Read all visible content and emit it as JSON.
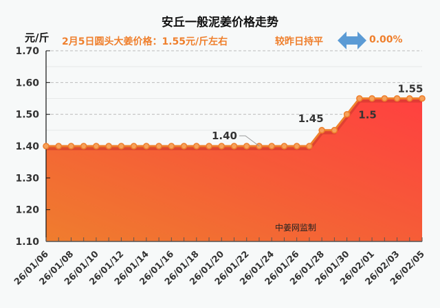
{
  "header": {
    "title": "安丘一般泥姜价格走势",
    "unit": "元/斤",
    "price_text": "2月5日圆头大姜价格：1.55元/斤左右",
    "change_text": "较昨日持平",
    "change_icon": "left-right-arrow-icon",
    "change_pct": "0.00%"
  },
  "watermark": "中姜网监制",
  "colors": {
    "headline": "#ef7f2c",
    "line": "#ef7f2c",
    "fill_top": "#ff4040",
    "fill_bottom": "#f07a30",
    "arrow": "#5b9bd5",
    "background": "#f7f9f9"
  },
  "chart_data": {
    "type": "area",
    "title": "安丘一般泥姜价格走势",
    "xlabel": "",
    "ylabel": "元/斤",
    "ylim": [
      1.1,
      1.7
    ],
    "yticks": [
      "1.10",
      "1.20",
      "1.30",
      "1.40",
      "1.50",
      "1.60",
      "1.70"
    ],
    "grid": true,
    "x": [
      "26/01/06",
      "26/01/07",
      "26/01/08",
      "26/01/09",
      "26/01/10",
      "26/01/11",
      "26/01/12",
      "26/01/13",
      "26/01/14",
      "26/01/15",
      "26/01/16",
      "26/01/17",
      "26/01/18",
      "26/01/19",
      "26/01/20",
      "26/01/21",
      "26/01/22",
      "26/01/23",
      "26/01/24",
      "26/01/25",
      "26/01/26",
      "26/01/27",
      "26/01/28",
      "26/01/29",
      "26/01/30",
      "26/01/31",
      "26/02/01",
      "26/02/02",
      "26/02/03",
      "26/02/04",
      "26/02/05"
    ],
    "xtick_labels": [
      "26/01/06",
      "26/01/08",
      "26/01/10",
      "26/01/12",
      "26/01/14",
      "26/01/16",
      "26/01/18",
      "26/01/20",
      "26/01/22",
      "26/01/24",
      "26/01/26",
      "26/01/28",
      "26/01/30",
      "26/02/01",
      "26/02/03",
      "26/02/05"
    ],
    "values": [
      1.4,
      1.4,
      1.4,
      1.4,
      1.4,
      1.4,
      1.4,
      1.4,
      1.4,
      1.4,
      1.4,
      1.4,
      1.4,
      1.4,
      1.4,
      1.4,
      1.4,
      1.4,
      1.4,
      1.4,
      1.4,
      1.4,
      1.45,
      1.45,
      1.5,
      1.55,
      1.55,
      1.55,
      1.55,
      1.55,
      1.55
    ],
    "annotations": [
      {
        "index": 17,
        "text": "1.40",
        "leader": true
      },
      {
        "index": 22,
        "text": "1.45"
      },
      {
        "index": 24,
        "text": "1.5"
      },
      {
        "index": 30,
        "text": "1.55"
      }
    ]
  }
}
